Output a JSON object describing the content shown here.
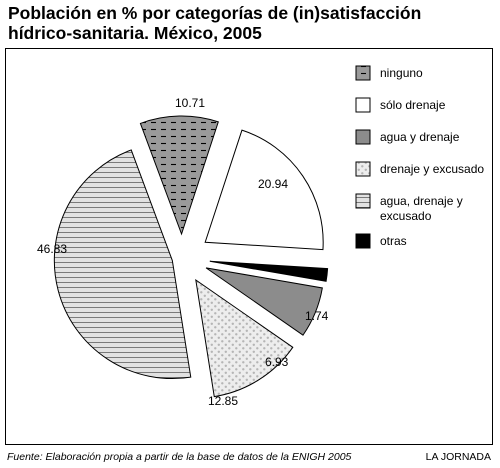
{
  "title_lines": [
    "Población en % por categorías de (in)satisfacción",
    "hídrico-sanitaria. México, 2005"
  ],
  "source": "Fuente: Elaboración propia a partir de la base de datos de la ENIGH 2005",
  "credit": "LA JORNADA",
  "chart_data": {
    "type": "pie",
    "title": "Población en % por categorías de (in)satisfacción hídrico-sanitaria. México, 2005",
    "legend_position": "right",
    "slices": [
      {
        "label": "ninguno",
        "value": 10.71,
        "value_label": "10.71",
        "fill": "#9a9a9a",
        "pattern": "dashes"
      },
      {
        "label": "sólo drenaje",
        "value": 20.94,
        "value_label": "20.94",
        "fill": "#ffffff",
        "pattern": "none"
      },
      {
        "label": "otras",
        "value": 1.74,
        "value_label": "1.74",
        "fill": "#000000",
        "pattern": "none"
      },
      {
        "label": "agua y drenaje",
        "value": 6.93,
        "value_label": "6.93",
        "fill": "#8c8c8c",
        "pattern": "none"
      },
      {
        "label": "drenaje y excusado",
        "value": 12.85,
        "value_label": "12.85",
        "fill": "#e6e6e6",
        "pattern": "dots"
      },
      {
        "label": "agua, drenaje y excusado",
        "value": 46.83,
        "value_label": "46.83",
        "fill": "#d0d0d0",
        "pattern": "hlines"
      }
    ],
    "legend": [
      {
        "lines": [
          "ninguno"
        ],
        "slice": 0
      },
      {
        "lines": [
          "sólo drenaje"
        ],
        "slice": 1
      },
      {
        "lines": [
          "agua y drenaje"
        ],
        "slice": 3
      },
      {
        "lines": [
          "drenaje y excusado"
        ],
        "slice": 4
      },
      {
        "lines": [
          "agua, drenaje y",
          "excusado"
        ],
        "slice": 5
      },
      {
        "lines": [
          "otras"
        ],
        "slice": 2
      }
    ]
  }
}
